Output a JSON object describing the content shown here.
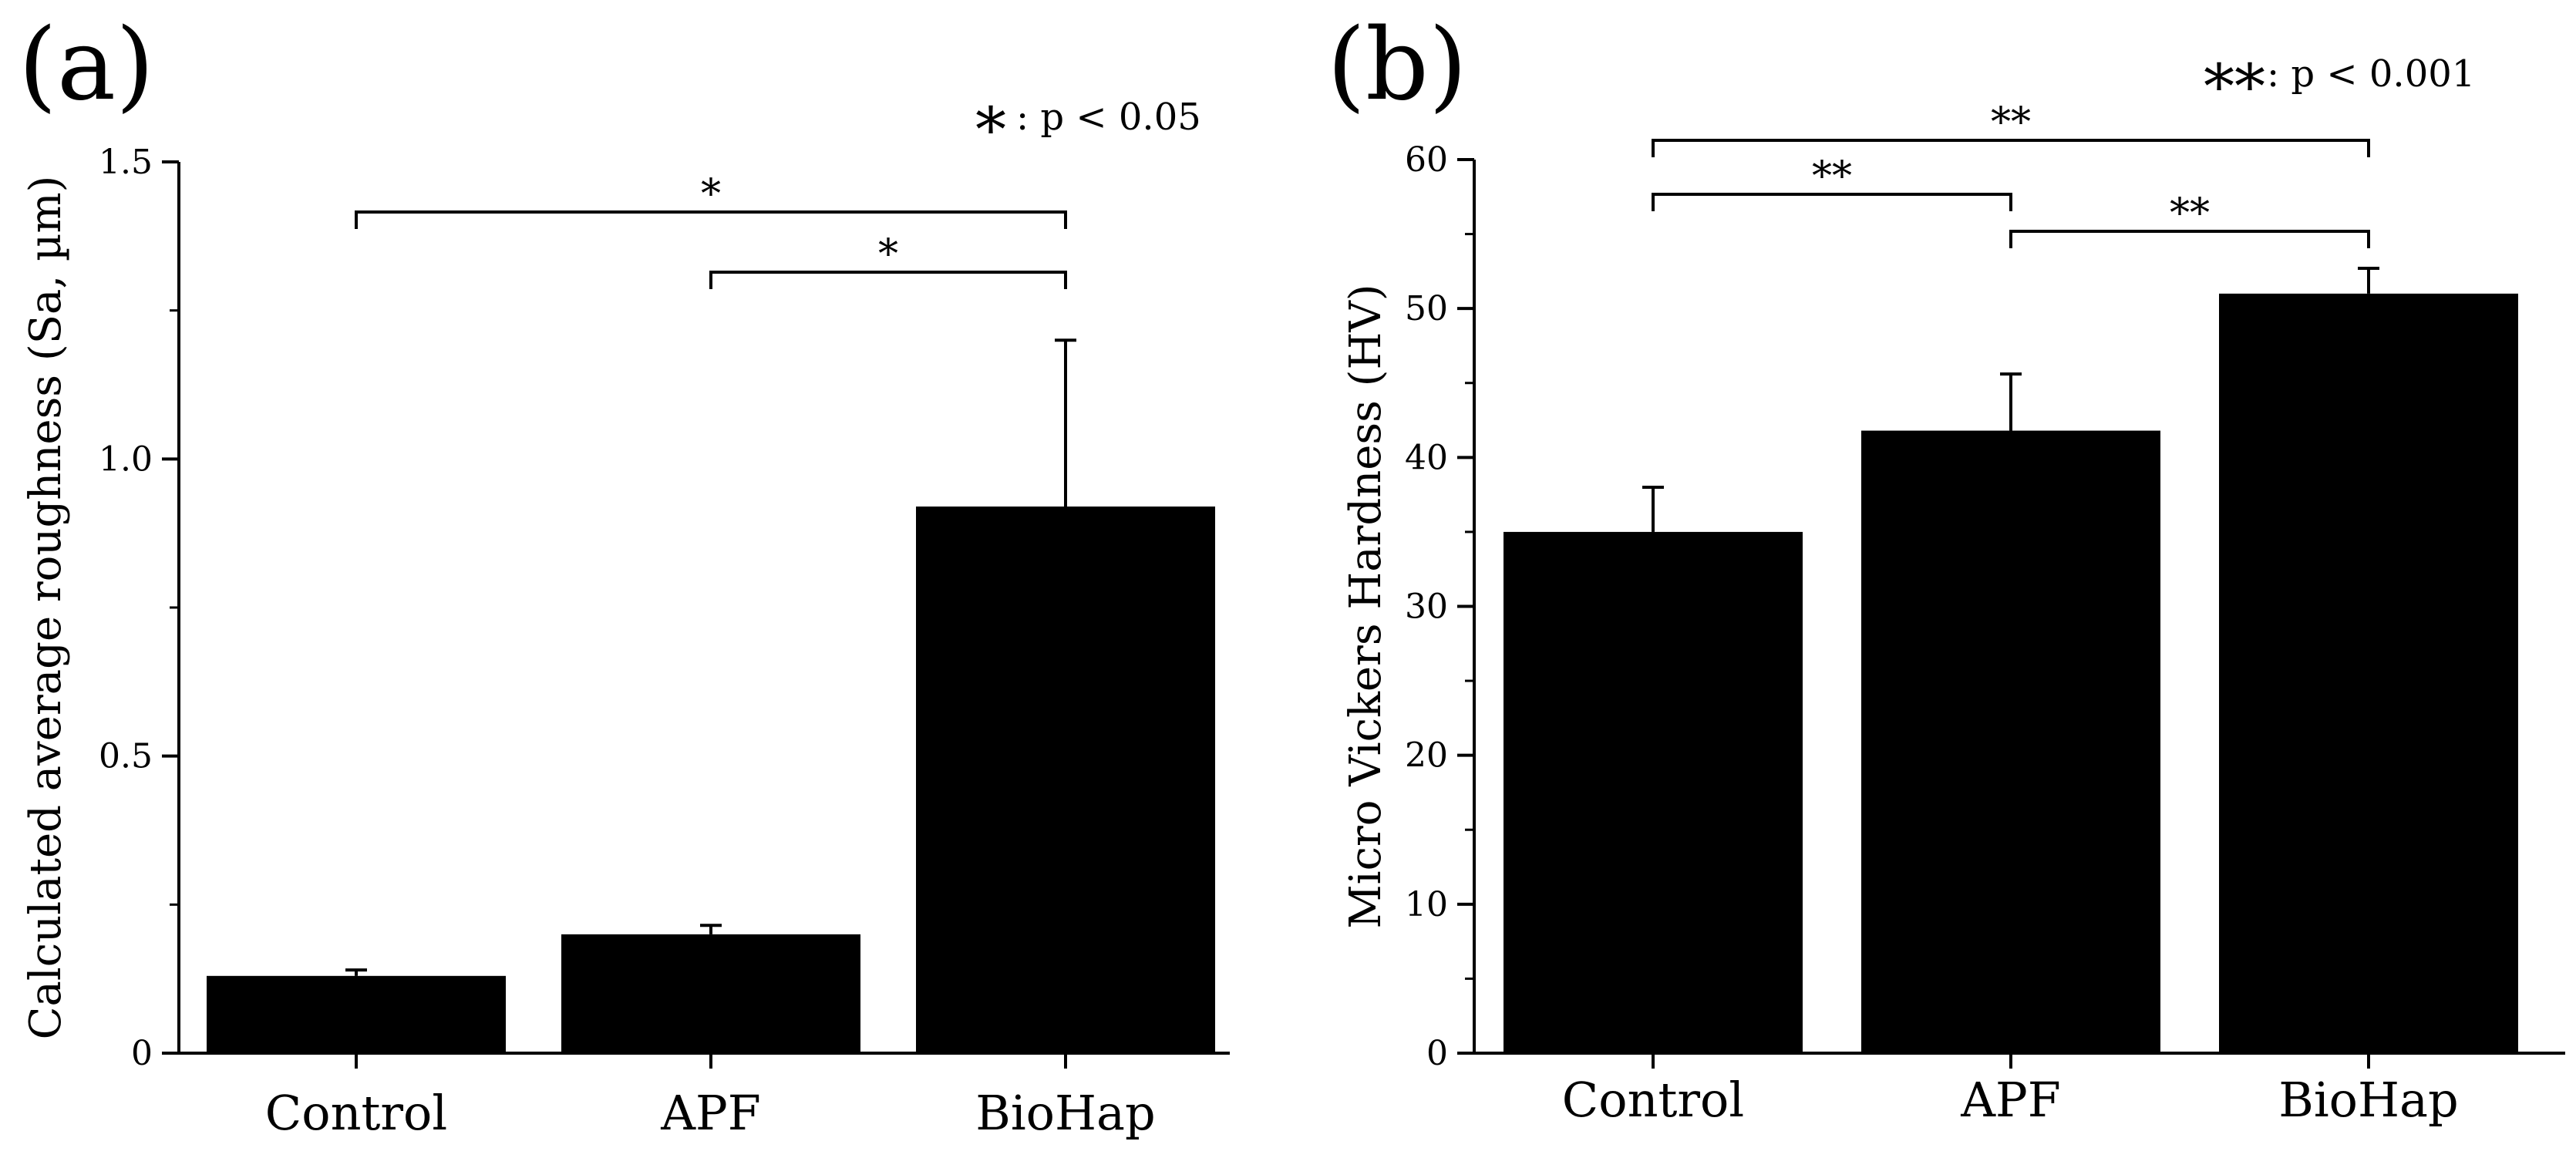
{
  "chart_data": [
    {
      "type": "bar",
      "panel_label": "(a)",
      "title": "",
      "xlabel": "",
      "ylabel": "Calculated average roughness (Sa, µm)",
      "ylim": [
        0,
        1.5
      ],
      "yticks": [
        0,
        0.5,
        1.0,
        1.5
      ],
      "ytick_labels": [
        "0",
        "0.5",
        "1.0",
        "1.5"
      ],
      "categories": [
        "Control",
        "APF",
        "BioHap"
      ],
      "values": [
        0.13,
        0.2,
        0.92
      ],
      "errors": [
        0.01,
        0.015,
        0.28
      ],
      "bar_color": "#000000",
      "legend_symbol": "*",
      "legend_text": ": p < 0.05",
      "significance": [
        {
          "from": 0,
          "to": 2,
          "label": "*"
        },
        {
          "from": 1,
          "to": 2,
          "label": "*"
        }
      ]
    },
    {
      "type": "bar",
      "panel_label": "(b)",
      "title": "",
      "xlabel": "",
      "ylabel": "Micro Vickers Hardness (HV)",
      "ylim": [
        0,
        60
      ],
      "yticks": [
        0,
        10,
        20,
        30,
        40,
        50,
        60
      ],
      "ytick_labels": [
        "0",
        "10",
        "20",
        "30",
        "40",
        "50",
        "60"
      ],
      "categories": [
        "Control",
        "APF",
        "BioHap"
      ],
      "values": [
        35.0,
        41.8,
        51.0
      ],
      "errors": [
        3.0,
        3.8,
        1.7
      ],
      "bar_color": "#000000",
      "legend_symbol": "**",
      "legend_text": ": p < 0.001",
      "significance": [
        {
          "from": 0,
          "to": 2,
          "label": "**"
        },
        {
          "from": 0,
          "to": 1,
          "label": "**"
        },
        {
          "from": 1,
          "to": 2,
          "label": "**"
        }
      ]
    }
  ]
}
